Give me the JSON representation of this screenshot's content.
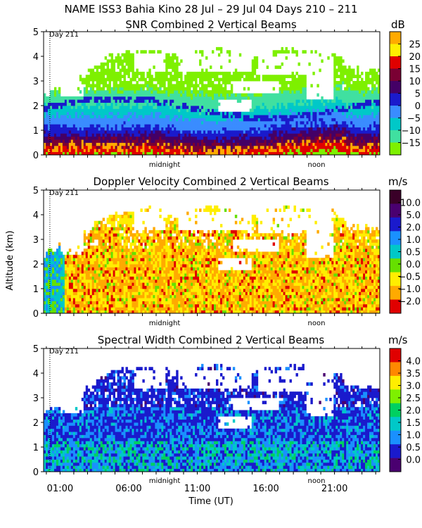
{
  "figure": {
    "title": "NAME ISS3 Bahia Kino  28 Jul – 29 Jul 04 Days 210 – 211",
    "xlabel": "Time (UT)",
    "ylabel": "Altitude (km)"
  },
  "chart_data": [
    {
      "type": "heatmap",
      "title": "SNR Combined 2 Vertical Beams",
      "units": "dB",
      "day_marker": "Day 211",
      "midnight_label": "midnight",
      "noon_label": "noon",
      "ylim": [
        0,
        5
      ],
      "yticks": [
        "0",
        "1",
        "2",
        "3",
        "4",
        "5"
      ],
      "colorbar_labels": [
        "25",
        "20",
        "15",
        "10",
        "5",
        "0",
        "−5",
        "−10",
        "−15"
      ],
      "colorbar_colors": [
        "#ffaa00",
        "#ffee00",
        "#e00000",
        "#7a0033",
        "#440066",
        "#1a1acc",
        "#3a8cff",
        "#00c8c8",
        "#40e0a0",
        "#7ef000"
      ]
    },
    {
      "type": "heatmap",
      "title": "Doppler Velocity Combined 2 Vertical Beams",
      "units": "m/s",
      "day_marker": "Day 211",
      "midnight_label": "midnight",
      "noon_label": "noon",
      "ylim": [
        0,
        5
      ],
      "yticks": [
        "0",
        "1",
        "2",
        "3",
        "4",
        "5"
      ],
      "colorbar_labels": [
        "10.0",
        "5.0",
        "2.0",
        "1.0",
        "0.5",
        "0.0",
        "−0.5",
        "−1.0",
        "−2.0"
      ],
      "colorbar_colors": [
        "#3a0028",
        "#4a0070",
        "#1a1acc",
        "#1a90ff",
        "#00c8c8",
        "#66e000",
        "#ffee00",
        "#ffaa00",
        "#e00000"
      ]
    },
    {
      "type": "heatmap",
      "title": "Spectral Width Combined 2 Vertical Beams",
      "units": "m/s",
      "day_marker": "Day 211",
      "midnight_label": "midnight",
      "noon_label": "noon",
      "ylim": [
        0,
        5
      ],
      "yticks": [
        "0",
        "1",
        "2",
        "3",
        "4",
        "5"
      ],
      "colorbar_labels": [
        "4.0",
        "3.5",
        "3.0",
        "2.5",
        "2.0",
        "1.5",
        "1.0",
        "0.5",
        "0.0"
      ],
      "colorbar_colors": [
        "#e00000",
        "#ff8800",
        "#ffee00",
        "#7ef000",
        "#00d060",
        "#00c8c8",
        "#1a90ff",
        "#1a1acc",
        "#4a0070"
      ]
    }
  ],
  "x_axis": {
    "tick_labels": [
      "01:00",
      "06:00",
      "11:00",
      "16:00",
      "21:00"
    ],
    "tick_hours": [
      1,
      6,
      11,
      16,
      21
    ]
  }
}
